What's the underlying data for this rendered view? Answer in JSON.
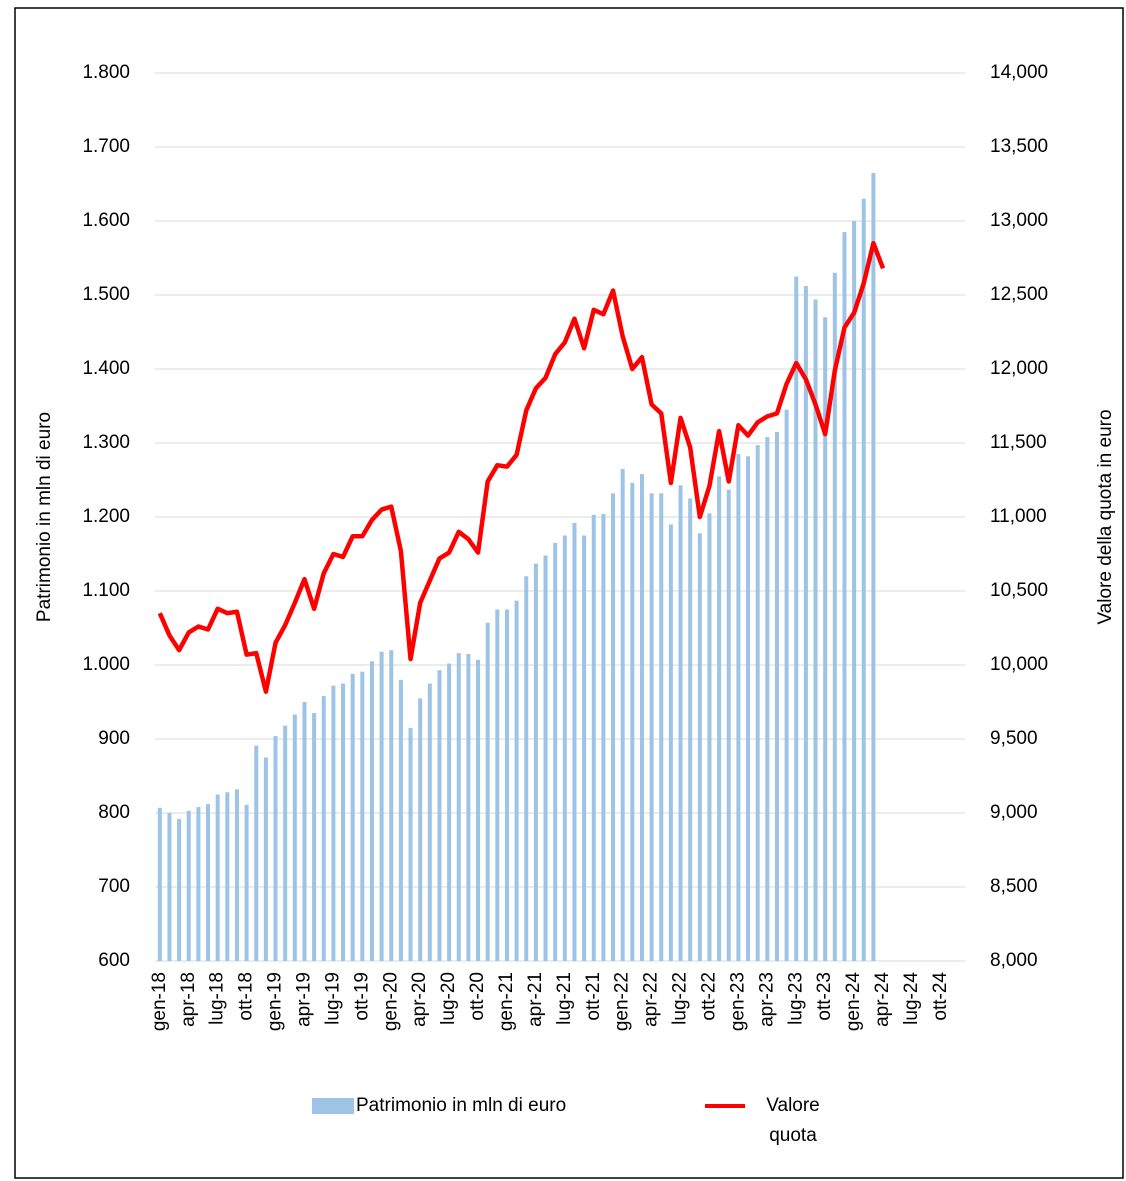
{
  "chart_data": {
    "type": "bar-line",
    "y_label": "Patrimonio in mln di euro",
    "y2_label": "Valore della quota in euro",
    "categories": [
      "gen-18",
      null,
      null,
      "apr-18",
      null,
      null,
      "lug-18",
      null,
      null,
      "ott-18",
      null,
      null,
      "gen-19",
      null,
      null,
      "apr-19",
      null,
      null,
      "lug-19",
      null,
      null,
      "ott-19",
      null,
      null,
      "gen-20",
      null,
      null,
      "apr-20",
      null,
      null,
      "lug-20",
      null,
      null,
      "ott-20",
      null,
      null,
      "gen-21",
      null,
      null,
      "apr-21",
      null,
      null,
      "lug-21",
      null,
      null,
      "ott-21",
      null,
      null,
      "gen-22",
      null,
      null,
      "apr-22",
      null,
      null,
      "lug-22",
      null,
      null,
      "ott-22",
      null,
      null,
      "gen-23",
      null,
      null,
      "apr-23",
      null,
      null,
      "lug-23",
      null,
      null,
      "ott-23",
      null,
      null,
      "gen-24",
      null,
      null,
      "apr-24",
      null,
      null,
      "lug-24",
      null,
      null,
      "ott-24",
      null,
      null
    ],
    "series": [
      {
        "name": "Patrimonio in mln di euro",
        "color": "#9dc3e6",
        "type": "bar",
        "values": [
          807,
          800,
          792,
          803,
          808,
          812,
          825,
          828,
          832,
          811,
          891,
          875,
          904,
          918,
          933,
          950,
          935,
          958,
          972,
          975,
          988,
          991,
          1005,
          1018,
          1020,
          980,
          915,
          955,
          975,
          993,
          1002,
          1016,
          1015,
          1007,
          1057,
          1075,
          1075,
          1087,
          1120,
          1137,
          1148,
          1165,
          1175,
          1192,
          1175,
          1203,
          1204,
          1232,
          1265,
          1246,
          1258,
          1232,
          1232,
          1190,
          1243,
          1225,
          1178,
          1205,
          1255,
          1237,
          1285,
          1282,
          1297,
          1308,
          1315,
          1345,
          1525,
          1512,
          1494,
          1470,
          1530,
          1585,
          1600,
          1630,
          1665,
          null,
          null,
          null,
          null,
          null,
          null,
          null,
          null,
          null
        ]
      },
      {
        "name": "Valore quota",
        "color": "#ff0000",
        "type": "line",
        "axis": "y2",
        "values": [
          10350,
          10200,
          10100,
          10220,
          10260,
          10240,
          10380,
          10350,
          10360,
          10070,
          10080,
          9820,
          10150,
          10270,
          10420,
          10580,
          10380,
          10620,
          10750,
          10730,
          10870,
          10870,
          10980,
          11050,
          11070,
          10770,
          10040,
          10420,
          10570,
          10720,
          10760,
          10900,
          10850,
          10760,
          11240,
          11350,
          11340,
          11420,
          11720,
          11870,
          11940,
          12100,
          12180,
          12340,
          12140,
          12400,
          12370,
          12530,
          12220,
          12000,
          12080,
          11760,
          11700,
          11230,
          11670,
          11470,
          11000,
          11210,
          11580,
          11240,
          11620,
          11550,
          11640,
          11680,
          11700,
          11900,
          12040,
          11930,
          11760,
          11560,
          11990,
          12280,
          12380,
          12580,
          12850,
          12680,
          null,
          null,
          null,
          null,
          null,
          null,
          null,
          null
        ]
      }
    ],
    "ylim": [
      600,
      1800
    ],
    "yticks": [
      600,
      700,
      800,
      900,
      {
        "value": 1000,
        "label": "1.000"
      },
      {
        "value": 1100,
        "label": "1.100"
      },
      {
        "value": 1200,
        "label": "1.200"
      },
      {
        "value": 1300,
        "label": "1.300"
      },
      {
        "value": 1400,
        "label": "1.400"
      },
      {
        "value": 1500,
        "label": "1.500"
      },
      {
        "value": 1600,
        "label": "1.600"
      },
      {
        "value": 1700,
        "label": "1.700"
      },
      {
        "value": 1800,
        "label": "1.800"
      }
    ],
    "y2lim": [
      8000,
      14000
    ],
    "y2ticks": [
      {
        "value": 8000,
        "label": "8,000"
      },
      {
        "value": 8500,
        "label": "8,500"
      },
      {
        "value": 9000,
        "label": "9,000"
      },
      {
        "value": 9500,
        "label": "9,500"
      },
      {
        "value": 10000,
        "label": "10,000"
      },
      {
        "value": 10500,
        "label": "10,500"
      },
      {
        "value": 11000,
        "label": "11,000"
      },
      {
        "value": 11500,
        "label": "11,500"
      },
      {
        "value": 12000,
        "label": "12,000"
      },
      {
        "value": 12500,
        "label": "12,500"
      },
      {
        "value": 13000,
        "label": "13,000"
      },
      {
        "value": 13500,
        "label": "13,500"
      },
      {
        "value": 14000,
        "label": "14,000"
      }
    ],
    "grid": true
  }
}
